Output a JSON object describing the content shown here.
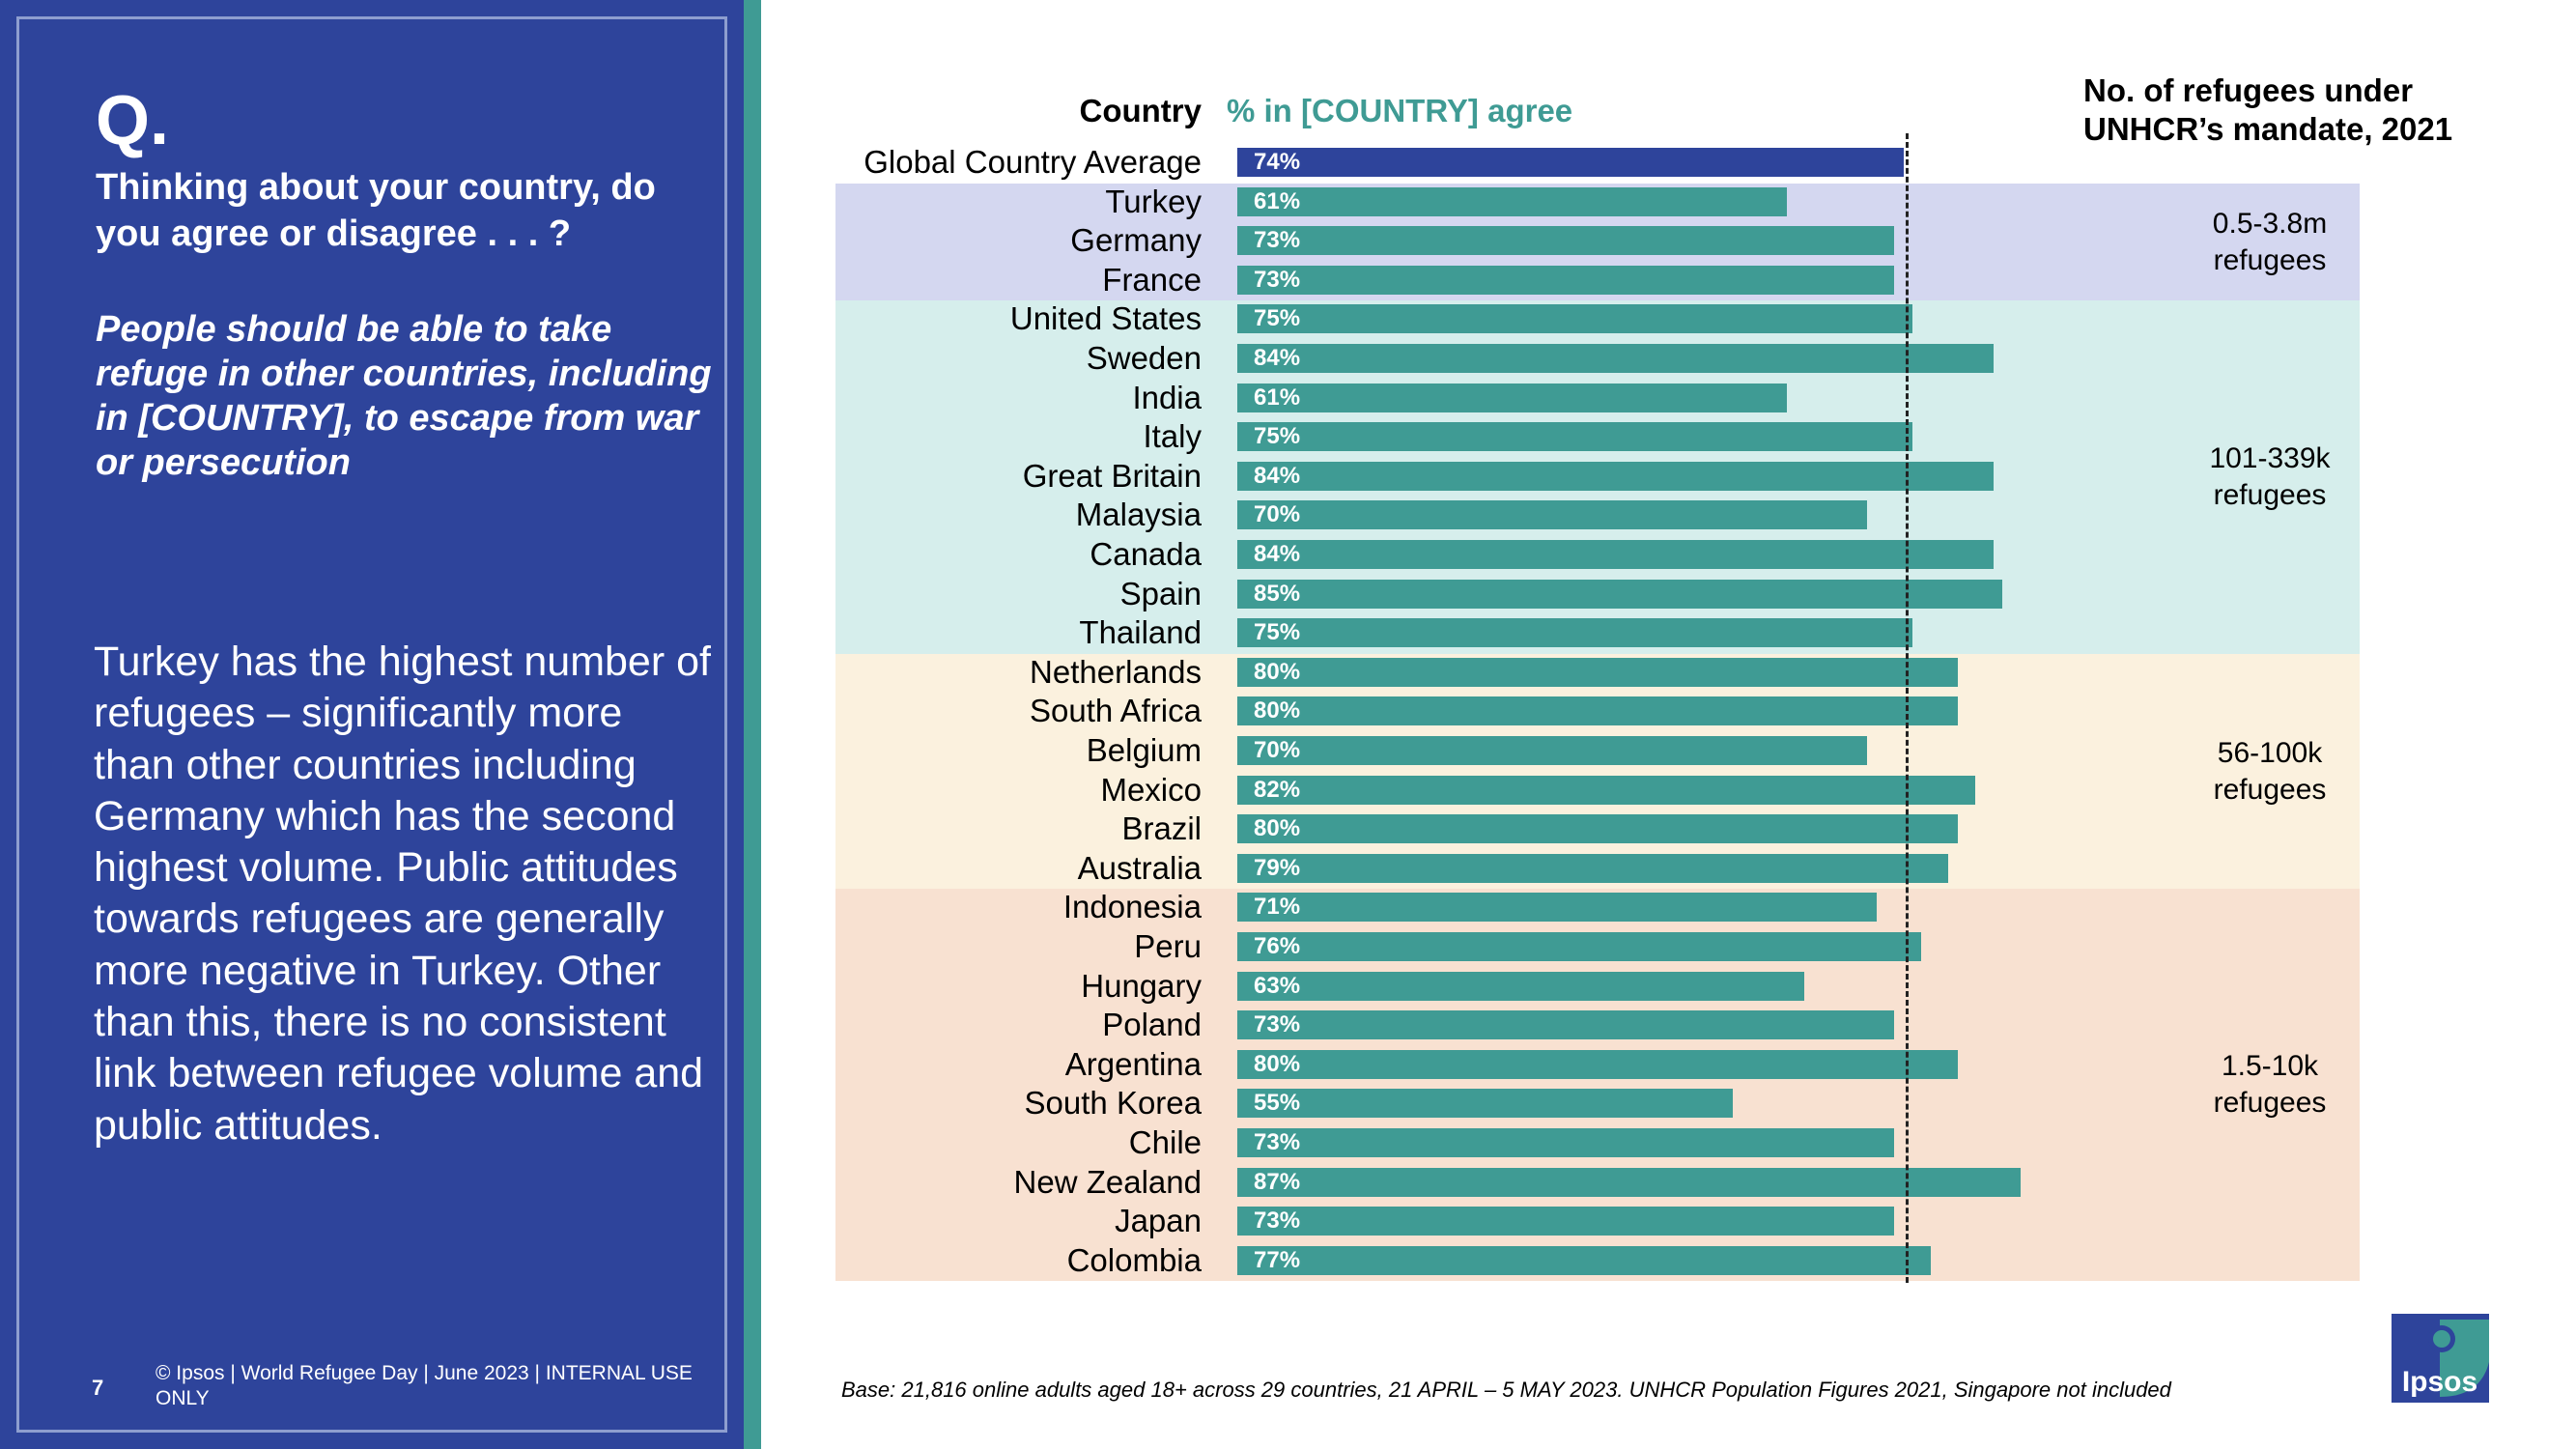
{
  "left": {
    "q_mark": "Q.",
    "question": "Thinking about your country, do you agree or disagree . . . ?",
    "statement": "People should be able to take refuge in other countries, including in [COUNTRY], to escape from war or persecution",
    "insight": "Turkey has the highest number of refugees – significantly more than other countries including Germany which has the second highest volume.  Public attitudes towards refugees are generally more negative in Turkey.  Other than this, there is no consistent link between refugee volume and public attitudes.",
    "page_number": "7",
    "copyright": "© Ipsos | World Refugee Day | June 2023 | INTERNAL USE ONLY"
  },
  "footer": {
    "base_note": "Base: 21,816 online adults aged 18+ across 29 countries,  21 APRIL – 5 MAY 2023. UNHCR Population Figures 2021, Singapore not included"
  },
  "logo": {
    "text": "Ipsos"
  },
  "colors": {
    "navy": "#2e449b",
    "teal": "#3f9b94",
    "band1": "#d4d7f0",
    "band2": "#d6eeec",
    "band3": "#fbf1de",
    "band4": "#f8e1d1"
  },
  "chart_data": {
    "type": "bar",
    "orientation": "horizontal",
    "column_headers": {
      "country": "Country",
      "agree": "% in [COUNTRY] agree",
      "refugees": "No. of refugees under UNHCR’s mandate, 2021"
    },
    "categories": [
      "Global Country Average",
      "Turkey",
      "Germany",
      "France",
      "United States",
      "Sweden",
      "India",
      "Italy",
      "Great Britain",
      "Malaysia",
      "Canada",
      "Spain",
      "Thailand",
      "Netherlands",
      "South Africa",
      "Belgium",
      "Mexico",
      "Brazil",
      "Australia",
      "Indonesia",
      "Peru",
      "Hungary",
      "Poland",
      "Argentina",
      "South Korea",
      "Chile",
      "New Zealand",
      "Japan",
      "Colombia"
    ],
    "values": [
      74,
      61,
      73,
      73,
      75,
      84,
      61,
      75,
      84,
      70,
      84,
      85,
      75,
      80,
      80,
      70,
      82,
      80,
      79,
      71,
      76,
      63,
      73,
      80,
      55,
      73,
      87,
      73,
      77
    ],
    "value_labels": [
      "74%",
      "61%",
      "73%",
      "73%",
      "75%",
      "84%",
      "61%",
      "75%",
      "84%",
      "70%",
      "84%",
      "85%",
      "75%",
      "80%",
      "80%",
      "70%",
      "82%",
      "80%",
      "79%",
      "71%",
      "76%",
      "63%",
      "73%",
      "80%",
      "55%",
      "73%",
      "87%",
      "73%",
      "77%"
    ],
    "reference_line": {
      "value": 74,
      "style": "dashed"
    },
    "xlim": [
      0,
      100
    ],
    "groups": [
      {
        "label": "0.5-3.8m refugees",
        "first": 1,
        "last": 3
      },
      {
        "label": "101-339k refugees",
        "first": 4,
        "last": 12
      },
      {
        "label": "56-100k refugees",
        "first": 13,
        "last": 18
      },
      {
        "label": "1.5-10k refugees",
        "first": 19,
        "last": 28
      }
    ]
  }
}
